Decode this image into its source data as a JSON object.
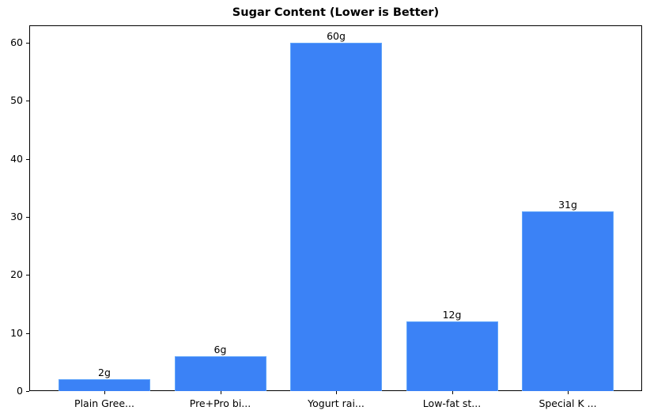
{
  "chart_data": {
    "type": "bar",
    "title": "Sugar Content (Lower is Better)",
    "xlabel": "",
    "ylabel": "",
    "categories": [
      "Plain Gree...",
      "Pre+Pro bi...",
      "Yogurt rai...",
      "Low-fat st...",
      "Special K ..."
    ],
    "values": [
      2,
      6,
      60,
      12,
      31
    ],
    "value_labels": [
      "2g",
      "6g",
      "60g",
      "12g",
      "31g"
    ],
    "ylim": [
      0,
      63
    ],
    "yticks": [
      0,
      10,
      20,
      30,
      40,
      50,
      60
    ],
    "grid": false,
    "legend": null,
    "bar_color": "#3b82f6"
  }
}
